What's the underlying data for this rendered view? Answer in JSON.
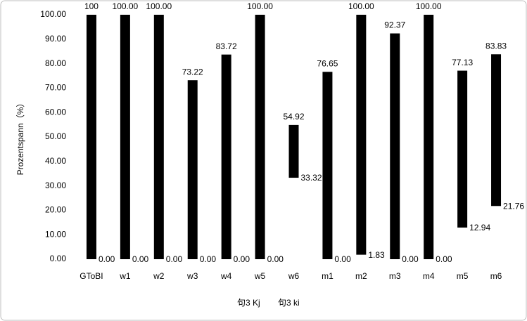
{
  "chart_data": {
    "type": "range_bar",
    "y_label": "Prozentspann（%）",
    "categories": [
      "GToBI",
      "w1",
      "w2",
      "w3",
      "w4",
      "w5",
      "w6",
      "m1",
      "m2",
      "m3",
      "m4",
      "m5",
      "m6"
    ],
    "series": [
      {
        "name": "句3 Kj",
        "color": "#000000",
        "values": [
          100,
          100,
          100,
          73.22,
          83.72,
          100,
          54.92,
          76.65,
          100,
          92.37,
          100,
          77.13,
          83.83
        ],
        "value_labels": [
          "100",
          "100.00",
          "100.00",
          "73.22",
          "83.72",
          "100.00",
          "54.92",
          "76.65",
          "100.00",
          "92.37",
          "100.00",
          "77.13",
          "83.83"
        ]
      },
      {
        "name": "句3 ki",
        "color": "#000000",
        "values": [
          0,
          0,
          0,
          0,
          0,
          0,
          33.32,
          0,
          1.83,
          0,
          0,
          12.94,
          21.76
        ],
        "value_labels": [
          "0.00",
          "0.00",
          "0.00",
          "0.00",
          "0.00",
          "0.00",
          "33.32",
          "0.00",
          "1.83",
          "0.00",
          "0.00",
          "12.94",
          "21.76"
        ]
      }
    ],
    "ylim": [
      0,
      100
    ],
    "yticks": [
      {
        "value": 0,
        "label": "0.00"
      },
      {
        "value": 10,
        "label": "10.00"
      },
      {
        "value": 20,
        "label": "20.00"
      },
      {
        "value": 30,
        "label": "30.00"
      },
      {
        "value": 40,
        "label": "40.00"
      },
      {
        "value": 50,
        "label": "50.00"
      },
      {
        "value": 60,
        "label": "60.00"
      },
      {
        "value": 70,
        "label": "70.00"
      },
      {
        "value": 80,
        "label": "80.00"
      },
      {
        "value": 90,
        "label": "90.00"
      },
      {
        "value": 100,
        "label": "100.00"
      }
    ],
    "grid": false,
    "legend": "bottom"
  }
}
